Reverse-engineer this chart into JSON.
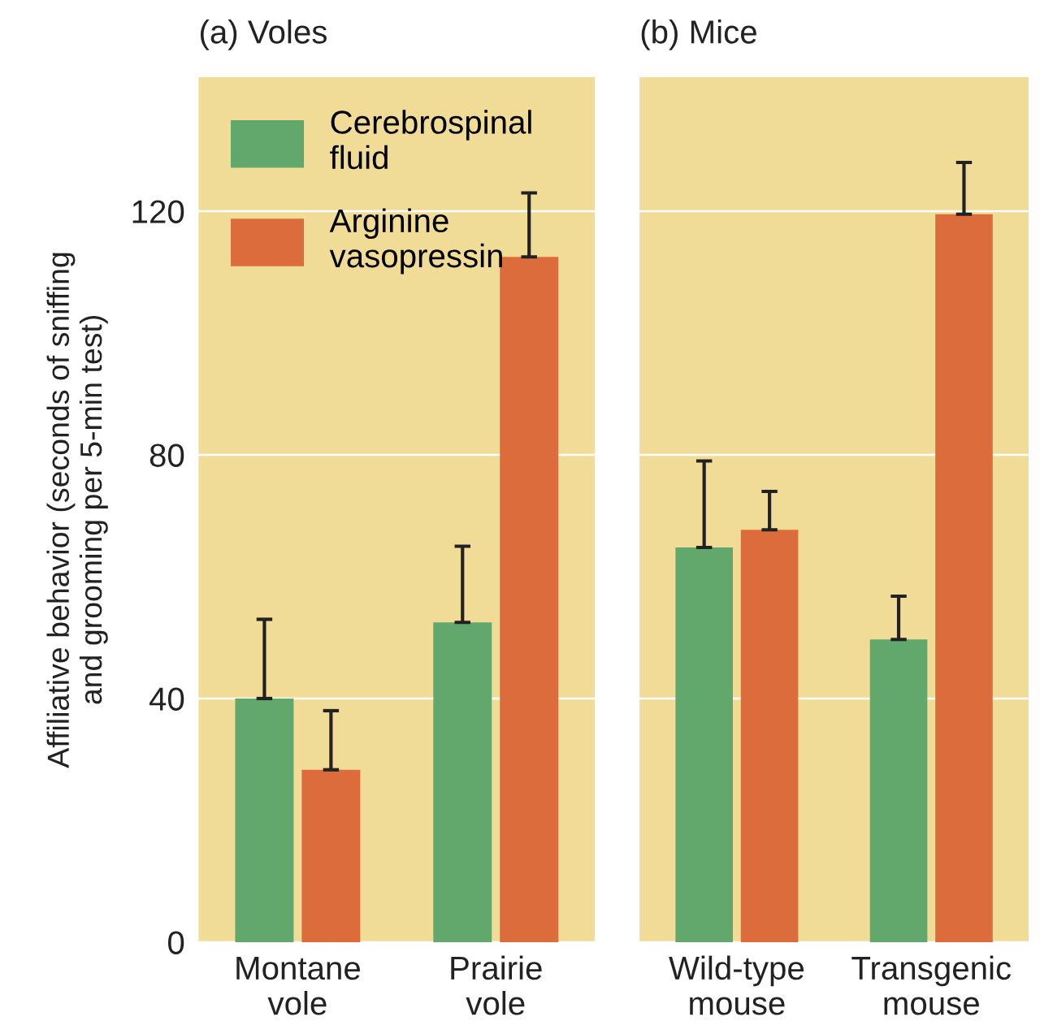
{
  "chart_data": [
    {
      "type": "bar",
      "title": "(a) Voles",
      "ylabel": "Affiliative behavior (seconds of sniffing\nand grooming per 5-min test)",
      "categories": [
        "Montane\nvole",
        "Prairie\nvole"
      ],
      "series": [
        {
          "name": "Cerebrospinal\nfluid",
          "color": "#62a86c",
          "values": [
            40,
            52.5
          ],
          "errors": [
            [
              40,
              53
            ],
            [
              52.5,
              65
            ]
          ]
        },
        {
          "name": "Arginine\nvasopressin",
          "color": "#dd6c3c",
          "values": [
            28.3,
            112.5
          ],
          "errors": [
            [
              28.3,
              38
            ],
            [
              112.5,
              123
            ]
          ]
        }
      ],
      "ylim": [
        0,
        142
      ],
      "yticks": [
        0,
        40,
        80,
        120
      ],
      "grid": "y",
      "legend": "top left"
    },
    {
      "type": "bar",
      "title": "(b) Mice",
      "categories": [
        "Wild-type\nmouse",
        "Transgenic\nmouse"
      ],
      "series": [
        {
          "color": "#62a86c",
          "values": [
            64.8,
            49.7
          ],
          "errors": [
            [
              64.8,
              79
            ],
            [
              49.7,
              56.8
            ]
          ]
        },
        {
          "color": "#dd6c3c",
          "values": [
            67.7,
            119.5
          ],
          "errors": [
            [
              67.7,
              74
            ],
            [
              119.5,
              128
            ]
          ]
        }
      ],
      "ylim": [
        0,
        142
      ],
      "yticks": [
        0,
        40,
        80,
        120
      ],
      "grid": "y",
      "tick_labels": "x"
    }
  ]
}
